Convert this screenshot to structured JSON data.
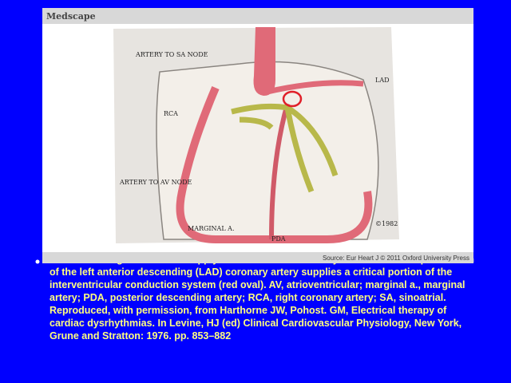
{
  "header": {
    "brand": "Medscape"
  },
  "figure": {
    "labels": {
      "sa_node": "ARTERY TO SA NODE",
      "rca": "RCA",
      "lad": "LAD",
      "av_node": "ARTERY TO AV NODE",
      "marginal": "MARGINAL A.",
      "pda": "PDA",
      "copyright": "©1982"
    },
    "source": "Source: Eur Heart J © 2011 Oxford University Press"
  },
  "caption": {
    "lines": [
      "Schematic diagram of blood supply to cardiac conduction system. The first septal branch",
      "of the left anterior descending (LAD) coronary artery supplies a critical portion of the",
      "interventricular conduction system (red oval). AV, atrioventricular; marginal a., marginal",
      "artery; PDA, posterior descending artery; RCA, right coronary artery; SA, sinoatrial.",
      "Reproduced, with permission, from Harthorne JW, Pohost. GM, Electrical therapy of",
      "cardiac dysrhythmias. In Levine, HJ (ed) Clinical Cardiovascular Physiology, New York,",
      "Grune and Stratton: 1976. pp. 853–882"
    ]
  }
}
